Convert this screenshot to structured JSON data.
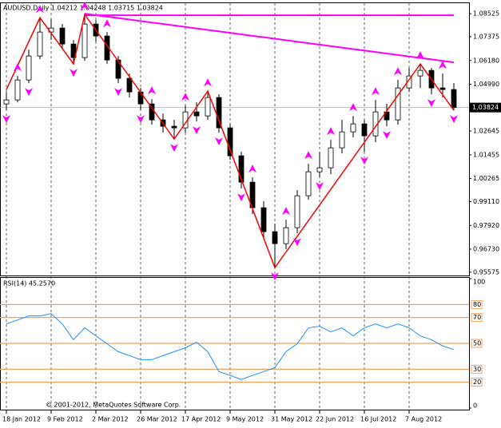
{
  "chart_data": [
    {
      "type": "candlestick",
      "title": "AUDUSD,Daily  1.04212 1.04248 1.03715 1.03824",
      "categories": [
        "18 Jan 2012",
        null,
        null,
        null,
        "9 Feb 2012",
        null,
        null,
        null,
        "2 Mar 2012",
        null,
        null,
        null,
        "26 Mar 2012",
        null,
        null,
        null,
        "17 Apr 2012",
        null,
        null,
        null,
        "9 May 2012",
        null,
        null,
        null,
        "31 May 2012",
        null,
        null,
        null,
        "22 Jun 2012",
        null,
        null,
        null,
        "16 Jul 2012",
        null,
        null,
        null,
        "7 Aug 2012",
        null,
        null,
        null,
        null
      ],
      "open": [
        1.04005,
        1.04205,
        1.05205,
        1.06405,
        1.07605,
        1.07805,
        1.07005,
        1.06325,
        1.08005,
        1.07405,
        1.06205,
        1.05285,
        1.04605,
        1.04005,
        1.03205,
        1.02885,
        1.02805,
        1.03605,
        1.03405,
        1.04325,
        1.02805,
        1.01405,
        1.00085,
        0.98805,
        0.97605,
        0.97005,
        0.97805,
        0.99405,
        1.00605,
        1.00805,
        1.01805,
        1.02605,
        1.03005,
        1.02405,
        1.03605,
        1.03205,
        1.04805,
        1.05405,
        1.05685,
        1.04805,
        1.04725
      ],
      "high": [
        1.04605,
        1.05405,
        1.06725,
        1.08325,
        1.08245,
        1.08005,
        1.07205,
        1.08485,
        1.08205,
        1.07605,
        1.06405,
        1.05525,
        1.04805,
        1.04245,
        1.03525,
        1.03205,
        1.03925,
        1.04085,
        1.04645,
        1.04485,
        1.03005,
        1.01605,
        1.00325,
        0.99125,
        0.98005,
        0.98205,
        0.99685,
        1.01005,
        1.01605,
        1.02205,
        1.03205,
        1.03405,
        1.03205,
        1.04205,
        1.04005,
        1.05205,
        1.05805,
        1.06005,
        1.05805,
        1.05525,
        1.05045
      ],
      "low": [
        1.03685,
        1.04085,
        1.05045,
        1.06245,
        1.07205,
        1.06725,
        1.06005,
        1.06165,
        1.07125,
        1.06005,
        1.05045,
        1.04325,
        1.03685,
        1.02965,
        1.02565,
        1.02245,
        1.02565,
        1.03125,
        1.03205,
        1.02565,
        1.01205,
        0.99765,
        0.98485,
        0.97205,
        0.95805,
        0.96725,
        0.97525,
        0.99205,
        1.00325,
        1.00485,
        1.01525,
        1.02325,
        1.01605,
        1.02085,
        1.02885,
        1.02965,
        1.04605,
        1.04805,
        1.04485,
        1.04325,
        1.03685
      ],
      "close": [
        1.04205,
        1.05205,
        1.06405,
        1.07605,
        1.07805,
        1.07005,
        1.06325,
        1.08005,
        1.07405,
        1.06205,
        1.05285,
        1.04605,
        1.04005,
        1.03205,
        1.02885,
        1.02805,
        1.03605,
        1.03405,
        1.04325,
        1.02805,
        1.01405,
        1.00085,
        0.98805,
        0.97605,
        0.97005,
        0.97805,
        0.99405,
        1.00605,
        1.00805,
        1.01805,
        1.02605,
        1.03005,
        1.02405,
        1.03605,
        1.03205,
        1.04805,
        1.05405,
        1.05685,
        1.04805,
        1.04725,
        1.03824
      ],
      "bull_color": "#ffffff",
      "bear_color": "#000000",
      "zigzag": {
        "color": "#ff0000",
        "values": [
          1.04725,
          1.05925,
          1.07125,
          1.08325,
          1.07552,
          1.06778,
          1.06005,
          1.08485,
          1.07705,
          1.06925,
          1.06145,
          1.05365,
          1.04585,
          1.03805,
          1.03025,
          1.02245,
          1.03045,
          1.03845,
          1.04645,
          1.03172,
          1.01698,
          1.00225,
          0.98752,
          0.97278,
          0.95805,
          0.9659,
          0.97374,
          0.98159,
          0.98943,
          0.99728,
          1.00513,
          1.01297,
          1.02082,
          1.02866,
          1.03651,
          1.04436,
          1.0522,
          1.06005,
          1.05232,
          1.04458,
          1.03685
        ]
      },
      "trendlines": [
        {
          "color": "#ff00ff",
          "values": [
            null,
            null,
            null,
            null,
            null,
            null,
            null,
            1.08445,
            1.08445,
            1.08445,
            1.08445,
            1.08445,
            1.08445,
            1.08445,
            1.08445,
            1.08445,
            1.08445,
            1.08445,
            1.08445,
            1.08445,
            1.08445,
            1.08445,
            1.08445,
            1.08445,
            1.08445,
            1.08445,
            1.08445,
            1.08445,
            1.08445,
            1.08445,
            1.08445,
            1.08445,
            1.08445,
            1.08445,
            1.08445,
            1.08445,
            1.08445,
            1.08445,
            1.08445,
            1.08445,
            1.08445
          ]
        },
        {
          "color": "#ff00ff",
          "values": [
            null,
            null,
            null,
            null,
            null,
            null,
            null,
            1.08525,
            1.08451,
            1.08377,
            1.08303,
            1.08229,
            1.08156,
            1.08082,
            1.08008,
            1.07934,
            1.0786,
            1.07786,
            1.07712,
            1.07638,
            1.07564,
            1.0749,
            1.07417,
            1.07343,
            1.07269,
            1.07195,
            1.07121,
            1.07047,
            1.06973,
            1.06899,
            1.06825,
            1.06751,
            1.06678,
            1.06604,
            1.0653,
            1.06456,
            1.06382,
            1.06308,
            1.06234,
            1.0616,
            1.06086
          ]
        }
      ],
      "fractals_up": {
        "color": "#ff00ff",
        "values": [
          null,
          1.05405,
          null,
          1.08325,
          null,
          null,
          null,
          1.08485,
          null,
          1.07605,
          null,
          null,
          null,
          1.04245,
          null,
          null,
          1.03925,
          null,
          1.04645,
          null,
          null,
          null,
          1.00325,
          null,
          null,
          0.98205,
          null,
          1.01005,
          null,
          1.02205,
          null,
          1.03405,
          null,
          1.04205,
          null,
          1.05205,
          null,
          1.06005,
          null,
          1.05525,
          null
        ]
      },
      "fractals_down": {
        "color": "#ff00ff",
        "values": [
          1.03685,
          null,
          1.05045,
          null,
          null,
          null,
          1.06005,
          null,
          null,
          null,
          1.05045,
          null,
          1.03685,
          null,
          null,
          1.02245,
          null,
          1.03125,
          null,
          1.02565,
          null,
          0.99765,
          null,
          null,
          0.95805,
          null,
          0.97525,
          null,
          1.00325,
          null,
          null,
          null,
          1.01605,
          null,
          1.02885,
          null,
          null,
          null,
          1.04485,
          null,
          1.03685
        ]
      },
      "current_price": 1.03824,
      "ylim": [
        0.9541,
        1.0905
      ],
      "yticks": [
        1.08525,
        1.07375,
        {
          "value": 1.0618,
          "label": "1.06180"
        },
        {
          "value": 1.0499,
          "label": "1.04990"
        },
        1.02645,
        1.01455,
        1.00265,
        {
          "value": 0.9911,
          "label": "0.99110"
        },
        {
          "value": 0.9792,
          "label": "0.97920"
        },
        {
          "value": 0.9673,
          "label": "0.96730"
        },
        0.95575
      ]
    },
    {
      "type": "line",
      "title": "RSI(14) 45.2570",
      "series": [
        {
          "color": "#1e90ff",
          "values": [
            65.0,
            68.1,
            71.2,
            71.2,
            73.0,
            65.0,
            52.8,
            62.0,
            55.8,
            49.7,
            43.6,
            40.5,
            37.4,
            37.4,
            40.5,
            43.6,
            46.6,
            50.9,
            43.6,
            28.2,
            25.2,
            22.1,
            25.2,
            28.2,
            31.3,
            43.6,
            49.7,
            62.0,
            63.2,
            58.9,
            62.0,
            55.8,
            62.0,
            65.0,
            62.0,
            65.0,
            62.0,
            55.8,
            52.8,
            48.0,
            45.257
          ]
        }
      ],
      "levels": [
        80,
        70,
        50,
        30,
        20
      ],
      "level_color": "#f4a460",
      "ylim": [
        0,
        100
      ],
      "yticks": [
        0,
        100
      ]
    }
  ],
  "copyright": "© 2001-2012, MetaQuotes Software Corp."
}
